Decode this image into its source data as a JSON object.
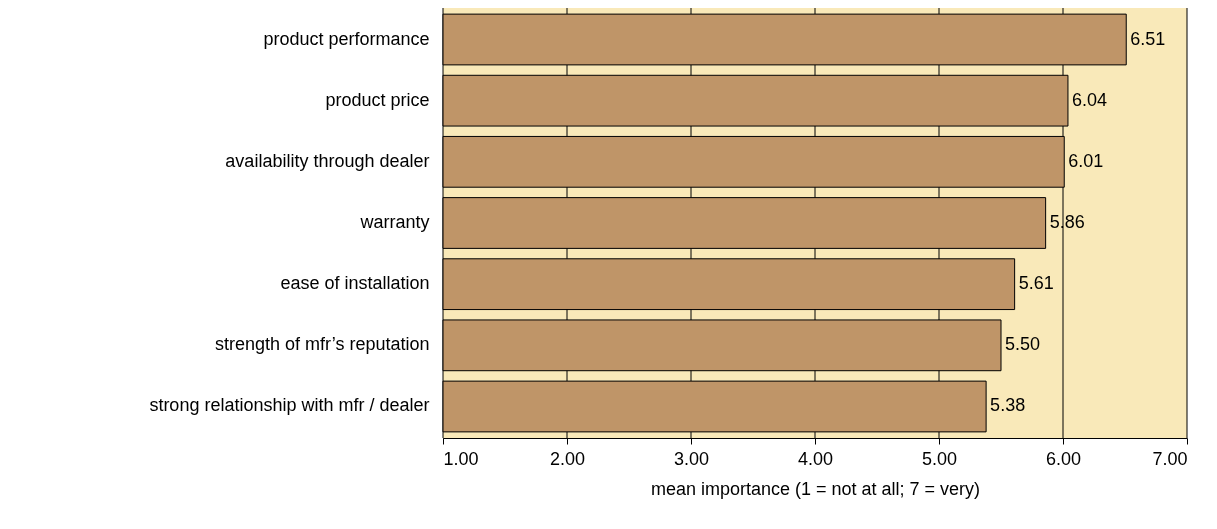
{
  "chart_data": {
    "type": "bar",
    "orientation": "horizontal",
    "xlabel": "mean importance (1 = not at all; 7 = very)",
    "categories": [
      "product performance",
      "product price",
      "availability through dealer",
      "warranty",
      "ease of installation",
      "strength of mfr’s reputation",
      "strong relationship with mfr / dealer"
    ],
    "values": [
      6.51,
      6.04,
      6.01,
      5.86,
      5.61,
      5.5,
      5.38
    ],
    "value_labels": [
      "6.51",
      "6.04",
      "6.01",
      "5.86",
      "5.61",
      "5.50",
      "5.38"
    ],
    "color": "#bf9568",
    "xlim": [
      1,
      7
    ],
    "xticks": [
      {
        "value": 1,
        "label": "1.00"
      },
      {
        "value": 2,
        "label": "2.00"
      },
      {
        "value": 3,
        "label": "3.00"
      },
      {
        "value": 4,
        "label": "4.00"
      },
      {
        "value": 5,
        "label": "5.00"
      },
      {
        "value": 6,
        "label": "6.00"
      },
      {
        "value": 7,
        "label": "7.00"
      }
    ],
    "bands": [
      {
        "axis": "x",
        "from": 1,
        "to": 7,
        "color": "#f9e9b9"
      }
    ],
    "grid": "x"
  }
}
